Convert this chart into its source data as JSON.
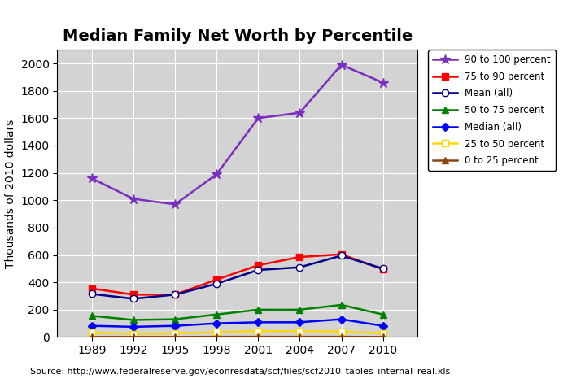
{
  "title": "Median Family Net Worth by Percentile",
  "ylabel": "Thousands of 2010 dollars",
  "source": "Source: http://www.federalreserve.gov/econresdata/scf/files/scf2010_tables_internal_real.xls",
  "years": [
    1989,
    1992,
    1995,
    1998,
    2001,
    2004,
    2007,
    2010
  ],
  "series": [
    {
      "label": "90 to 100 percent",
      "color": "#7B2FBE",
      "marker": "*",
      "markersize": 9,
      "markerfacecolor": "#7B2FBE",
      "markeredgecolor": "#7B2FBE",
      "values": [
        1160,
        1010,
        970,
        1190,
        1600,
        1640,
        1990,
        1860
      ]
    },
    {
      "label": "75 to 90 percent",
      "color": "#FF0000",
      "marker": "s",
      "markersize": 6,
      "markerfacecolor": "#FF0000",
      "markeredgecolor": "#FF0000",
      "values": [
        355,
        310,
        310,
        420,
        525,
        585,
        605,
        495
      ]
    },
    {
      "label": "Mean (all)",
      "color": "#00008B",
      "marker": "o",
      "markersize": 6,
      "markerfacecolor": "white",
      "markeredgecolor": "#00008B",
      "values": [
        315,
        280,
        310,
        390,
        490,
        510,
        595,
        500
      ]
    },
    {
      "label": "50 to 75 percent",
      "color": "#008000",
      "marker": "^",
      "markersize": 6,
      "markerfacecolor": "#008000",
      "markeredgecolor": "#008000",
      "values": [
        155,
        125,
        130,
        165,
        200,
        200,
        235,
        165
      ]
    },
    {
      "label": "Median (all)",
      "color": "#0000FF",
      "marker": "D",
      "markersize": 5,
      "markerfacecolor": "#0000FF",
      "markeredgecolor": "#0000FF",
      "values": [
        82,
        75,
        82,
        100,
        108,
        108,
        130,
        82
      ]
    },
    {
      "label": "25 to 50 percent",
      "color": "#FFD700",
      "marker": "s",
      "markersize": 6,
      "markerfacecolor": "white",
      "markeredgecolor": "#FFD700",
      "values": [
        30,
        23,
        26,
        36,
        43,
        43,
        40,
        27
      ]
    },
    {
      "label": "0 to 25 percent",
      "color": "#8B4513",
      "marker": "^",
      "markersize": 6,
      "markerfacecolor": "#8B4513",
      "markeredgecolor": "#8B4513",
      "values": [
        1,
        1,
        1,
        2,
        2,
        2,
        2,
        1
      ]
    }
  ],
  "ylim": [
    0,
    2100
  ],
  "yticks": [
    0,
    200,
    400,
    600,
    800,
    1000,
    1200,
    1400,
    1600,
    1800,
    2000
  ],
  "plot_area_color": "#D3D3D3",
  "figure_background": "#FFFFFF",
  "title_fontsize": 14,
  "axis_fontsize": 10,
  "source_fontsize": 8
}
